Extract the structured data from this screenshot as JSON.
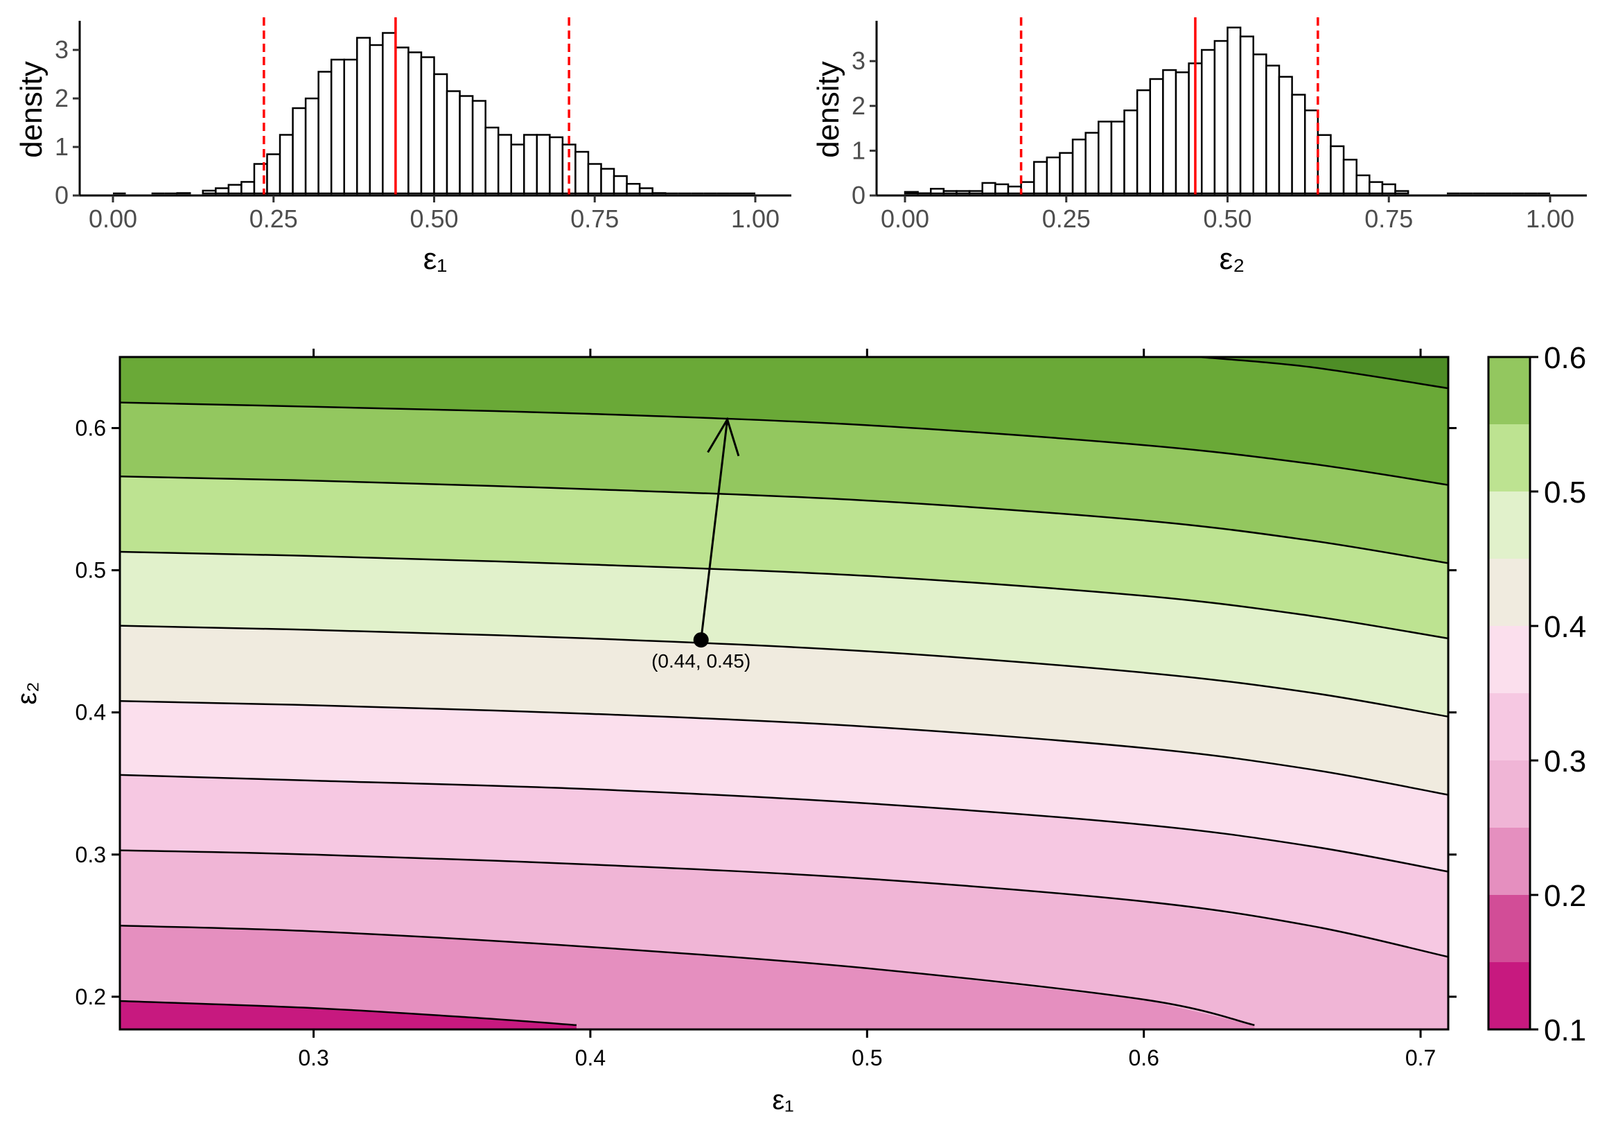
{
  "colors": {
    "bar_fill": "#ffffff",
    "bar_stroke": "#000000",
    "median_line": "#ff0000",
    "interval_line": "#ff0000",
    "contour_line": "#000000",
    "point": "#000000"
  },
  "chart_data": [
    {
      "id": "hist1",
      "type": "bar",
      "title": "",
      "xlabel": "ε₁",
      "ylabel": "density",
      "xlim": [
        0,
        1
      ],
      "ylim": [
        0,
        3.6
      ],
      "xticks": [
        "0.00",
        "0.25",
        "0.50",
        "0.75",
        "1.00"
      ],
      "xtick_values": [
        0,
        0.25,
        0.5,
        0.75,
        1.0
      ],
      "yticks": [
        "0",
        "1",
        "2",
        "3"
      ],
      "ytick_values": [
        0,
        1,
        2,
        3
      ],
      "bin_width": 0.02,
      "bins_start": 0.0,
      "values": [
        0,
        0.01,
        0.02,
        0,
        0,
        0.05,
        0.04,
        0.1,
        0.15,
        0.22,
        0.28,
        0.65,
        0.85,
        1.25,
        1.8,
        2.0,
        2.55,
        2.8,
        2.8,
        3.25,
        3.1,
        3.35,
        3.05,
        2.95,
        2.85,
        2.5,
        2.15,
        2.05,
        1.95,
        1.4,
        1.25,
        1.05,
        1.25,
        1.25,
        1.2,
        1.05,
        0.9,
        0.65,
        0.55,
        0.4,
        0.24,
        0.15,
        0.05,
        0,
        0,
        0,
        0,
        0,
        0,
        0
      ],
      "median": 0.44,
      "interval": [
        0.235,
        0.71
      ]
    },
    {
      "id": "hist2",
      "type": "bar",
      "title": "",
      "xlabel": "ε₂",
      "ylabel": "density",
      "xlim": [
        0,
        1
      ],
      "ylim": [
        0,
        3.9
      ],
      "xticks": [
        "0.00",
        "0.25",
        "0.50",
        "0.75",
        "1.00"
      ],
      "xtick_values": [
        0,
        0.25,
        0.5,
        0.75,
        1.0
      ],
      "yticks": [
        "0",
        "1",
        "2",
        "3"
      ],
      "ytick_values": [
        0,
        1,
        2,
        3
      ],
      "bin_width": 0.02,
      "bins_start": 0.0,
      "values": [
        0.08,
        0.05,
        0.15,
        0.1,
        0.1,
        0.1,
        0.28,
        0.25,
        0.2,
        0.3,
        0.75,
        0.85,
        0.95,
        1.25,
        1.4,
        1.65,
        1.65,
        1.9,
        2.35,
        2.6,
        2.8,
        2.75,
        2.95,
        3.25,
        3.45,
        3.75,
        3.55,
        3.15,
        2.9,
        2.65,
        2.25,
        1.9,
        1.35,
        1.1,
        0.8,
        0.45,
        0.3,
        0.25,
        0.1,
        0.04,
        0.04,
        0.03,
        0,
        0,
        0,
        0,
        0,
        0,
        0,
        0
      ],
      "median": 0.45,
      "interval": [
        0.18,
        0.64
      ]
    },
    {
      "id": "contour",
      "type": "heatmap",
      "title": "",
      "xlabel": "ε₁",
      "ylabel": "ε₂",
      "xlim": [
        0.23,
        0.71
      ],
      "ylim": [
        0.177,
        0.65
      ],
      "xticks": [
        "0.3",
        "0.4",
        "0.5",
        "0.6",
        "0.7"
      ],
      "xtick_values": [
        0.3,
        0.4,
        0.5,
        0.6,
        0.7
      ],
      "yticks": [
        "0.2",
        "0.3",
        "0.4",
        "0.5",
        "0.6"
      ],
      "ytick_values": [
        0.2,
        0.3,
        0.4,
        0.5,
        0.6
      ],
      "colorbar": {
        "levels": [
          0.1,
          0.15,
          0.2,
          0.25,
          0.3,
          0.35,
          0.4,
          0.45,
          0.5,
          0.55,
          0.6
        ],
        "colors": [
          "#c7197f",
          "#d24d97",
          "#e58fbf",
          "#f0b5d6",
          "#f6c8e2",
          "#fbdfed",
          "#f0ebdf",
          "#e1f1cb",
          "#bde391",
          "#93c75f",
          "#6aa937",
          "#4e8d26"
        ],
        "tick_labels": [
          "0.1",
          "0.2",
          "0.3",
          "0.4",
          "0.5",
          "0.6"
        ],
        "tick_values": [
          0.1,
          0.2,
          0.3,
          0.4,
          0.5,
          0.6
        ]
      },
      "contour_lines": [
        {
          "level": 0.15,
          "points": [
            [
              0.23,
              0.197
            ],
            [
              0.3,
              0.192
            ],
            [
              0.36,
              0.185
            ],
            [
              0.395,
              0.18
            ]
          ]
        },
        {
          "level": 0.2,
          "points": [
            [
              0.23,
              0.25
            ],
            [
              0.3,
              0.246
            ],
            [
              0.4,
              0.235
            ],
            [
              0.5,
              0.22
            ],
            [
              0.6,
              0.198
            ],
            [
              0.64,
              0.18
            ]
          ]
        },
        {
          "level": 0.25,
          "points": [
            [
              0.23,
              0.303
            ],
            [
              0.3,
              0.3
            ],
            [
              0.4,
              0.293
            ],
            [
              0.5,
              0.283
            ],
            [
              0.6,
              0.267
            ],
            [
              0.66,
              0.25
            ],
            [
              0.71,
              0.228
            ]
          ]
        },
        {
          "level": 0.3,
          "points": [
            [
              0.23,
              0.356
            ],
            [
              0.3,
              0.352
            ],
            [
              0.4,
              0.346
            ],
            [
              0.5,
              0.336
            ],
            [
              0.6,
              0.321
            ],
            [
              0.66,
              0.306
            ],
            [
              0.71,
              0.288
            ]
          ]
        },
        {
          "level": 0.35,
          "points": [
            [
              0.23,
              0.408
            ],
            [
              0.3,
              0.405
            ],
            [
              0.4,
              0.399
            ],
            [
              0.5,
              0.39
            ],
            [
              0.6,
              0.375
            ],
            [
              0.66,
              0.36
            ],
            [
              0.71,
              0.342
            ]
          ]
        },
        {
          "level": 0.4,
          "points": [
            [
              0.23,
              0.461
            ],
            [
              0.3,
              0.458
            ],
            [
              0.4,
              0.452
            ],
            [
              0.5,
              0.443
            ],
            [
              0.6,
              0.428
            ],
            [
              0.66,
              0.414
            ],
            [
              0.71,
              0.397
            ]
          ]
        },
        {
          "level": 0.45,
          "points": [
            [
              0.23,
              0.513
            ],
            [
              0.3,
              0.51
            ],
            [
              0.4,
              0.504
            ],
            [
              0.5,
              0.496
            ],
            [
              0.6,
              0.482
            ],
            [
              0.66,
              0.468
            ],
            [
              0.71,
              0.452
            ]
          ]
        },
        {
          "level": 0.5,
          "points": [
            [
              0.23,
              0.566
            ],
            [
              0.3,
              0.563
            ],
            [
              0.4,
              0.557
            ],
            [
              0.5,
              0.549
            ],
            [
              0.6,
              0.535
            ],
            [
              0.66,
              0.521
            ],
            [
              0.71,
              0.505
            ]
          ]
        },
        {
          "level": 0.55,
          "points": [
            [
              0.23,
              0.618
            ],
            [
              0.3,
              0.615
            ],
            [
              0.4,
              0.61
            ],
            [
              0.5,
              0.602
            ],
            [
              0.6,
              0.588
            ],
            [
              0.66,
              0.575
            ],
            [
              0.71,
              0.56
            ]
          ]
        },
        {
          "level": 0.6,
          "points": [
            [
              0.62,
              0.65
            ],
            [
              0.66,
              0.643
            ],
            [
              0.71,
              0.628
            ]
          ]
        }
      ],
      "point": {
        "x": 0.44,
        "y": 0.451,
        "label": "(0.44, 0.45)"
      },
      "arrow": {
        "from": [
          0.44,
          0.451
        ],
        "to": [
          0.4495,
          0.606
        ]
      }
    }
  ]
}
